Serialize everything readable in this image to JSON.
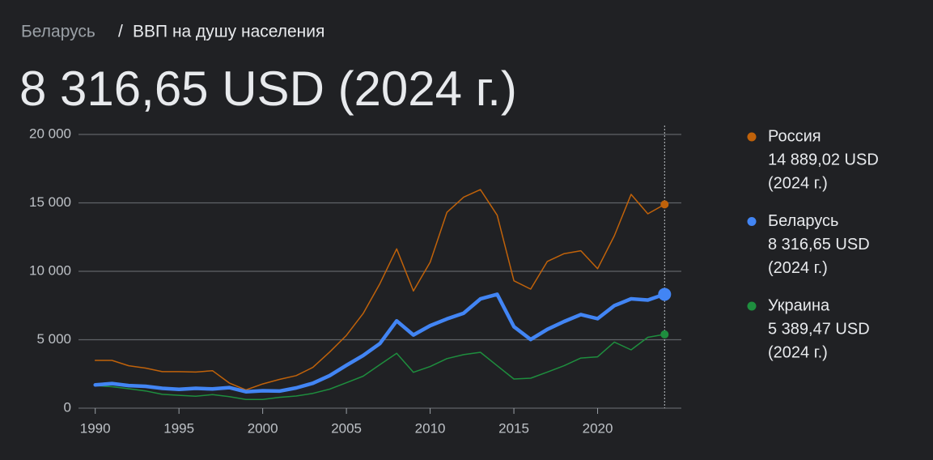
{
  "breadcrumb": [
    "Беларусь",
    "ВВП на душу населения"
  ],
  "headline": "8 316,65 USD (2024 г.)",
  "chart_data": {
    "type": "line",
    "x": [
      1990,
      1991,
      1992,
      1993,
      1994,
      1995,
      1996,
      1997,
      1998,
      1999,
      2000,
      2001,
      2002,
      2003,
      2004,
      2005,
      2006,
      2007,
      2008,
      2009,
      2010,
      2011,
      2012,
      2013,
      2014,
      2015,
      2016,
      2017,
      2018,
      2019,
      2020,
      2021,
      2022,
      2023,
      2024
    ],
    "xlim": [
      1989,
      2025
    ],
    "xticks": [
      1990,
      1995,
      2000,
      2005,
      2010,
      2015,
      2020
    ],
    "ylim": [
      0,
      20000
    ],
    "yticks": [
      0,
      {
        "value": 5000,
        "label": "5 000"
      },
      {
        "value": 10000,
        "label": "10 000"
      },
      {
        "value": 15000,
        "label": "15 000"
      },
      {
        "value": 20000,
        "label": "20 000"
      }
    ],
    "grid": true,
    "series": [
      {
        "name": "Россия",
        "color": "#c0620a",
        "width": 1.5,
        "values": [
          3490,
          3490,
          3100,
          2930,
          2670,
          2670,
          2640,
          2740,
          1840,
          1330,
          1770,
          2100,
          2380,
          2980,
          4100,
          5320,
          6920,
          9100,
          11640,
          8560,
          10670,
          14310,
          15420,
          15970,
          14100,
          9310,
          8700,
          10720,
          11290,
          11500,
          10190,
          12600,
          15620,
          14200,
          14889.02
        ],
        "latest_label": "14 889,02 USD",
        "latest_period": "(2024 г.)"
      },
      {
        "name": "Беларусь",
        "color": "#4285f4",
        "width": 4.5,
        "values": [
          1700,
          1800,
          1650,
          1600,
          1450,
          1380,
          1450,
          1400,
          1500,
          1200,
          1270,
          1250,
          1480,
          1820,
          2380,
          3130,
          3850,
          4720,
          6380,
          5350,
          6030,
          6520,
          6940,
          7980,
          8320,
          5950,
          5020,
          5760,
          6330,
          6840,
          6540,
          7490,
          7990,
          7900,
          8316.65
        ],
        "latest_label": "8 316,65 USD",
        "latest_period": "(2024 г.)"
      },
      {
        "name": "Украина",
        "color": "#1e8e3e",
        "width": 1.5,
        "values": [
          1650,
          1570,
          1420,
          1260,
          1010,
          940,
          870,
          990,
          840,
          640,
          640,
          790,
          890,
          1080,
          1390,
          1860,
          2340,
          3180,
          4010,
          2620,
          3040,
          3620,
          3910,
          4080,
          3100,
          2130,
          2190,
          2640,
          3100,
          3660,
          3750,
          4830,
          4260,
          5180,
          5389.47
        ],
        "latest_label": "5 389,47 USD",
        "latest_period": "(2024 г.)"
      }
    ]
  }
}
